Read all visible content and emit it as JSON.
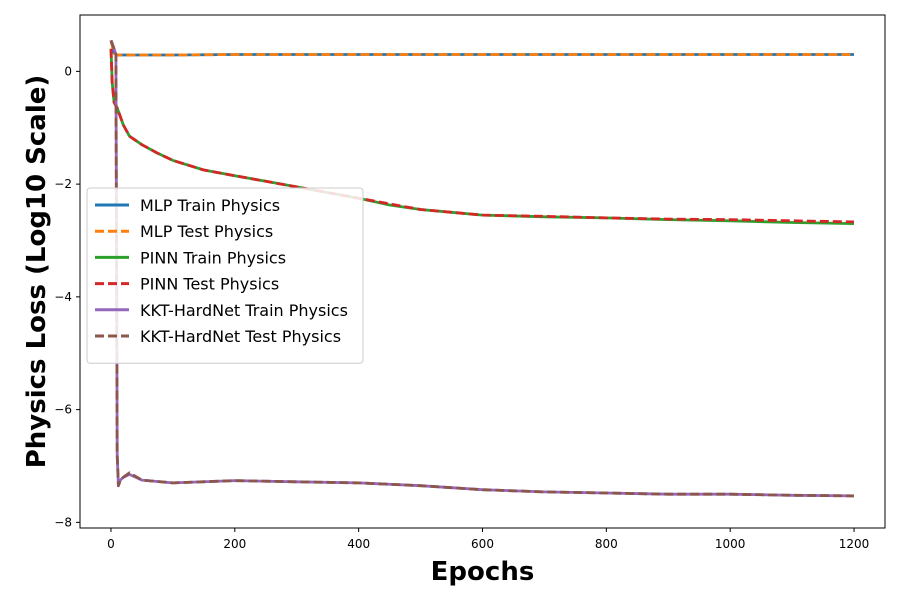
{
  "chart_data": {
    "type": "line",
    "title": "",
    "xlabel": "Epochs",
    "ylabel": "Physics Loss (Log10 Scale)",
    "xlim": [
      -50,
      1250
    ],
    "ylim": [
      -8.1,
      1.0
    ],
    "x_ticks": [
      0,
      200,
      400,
      600,
      800,
      1000,
      1200
    ],
    "y_ticks": [
      0,
      -2,
      -4,
      -6,
      -8
    ],
    "x_tick_labels": [
      "0",
      "200",
      "400",
      "600",
      "800",
      "1000",
      "1200"
    ],
    "y_tick_labels": [
      "0",
      "−2",
      "−4",
      "−6",
      "−8"
    ],
    "grid": false,
    "legend_position": "center-left",
    "series": [
      {
        "name": "MLP Train Physics",
        "color": "#1f77b4",
        "style": "solid",
        "x": [
          0,
          5,
          10,
          20,
          50,
          100,
          200,
          400,
          600,
          800,
          1000,
          1200
        ],
        "y": [
          0.55,
          0.32,
          0.29,
          0.29,
          0.29,
          0.29,
          0.3,
          0.3,
          0.3,
          0.3,
          0.3,
          0.3
        ]
      },
      {
        "name": "MLP Test Physics",
        "color": "#ff7f0e",
        "style": "dashed",
        "x": [
          0,
          5,
          10,
          20,
          50,
          100,
          200,
          400,
          600,
          800,
          1000,
          1200
        ],
        "y": [
          0.55,
          0.32,
          0.29,
          0.29,
          0.29,
          0.29,
          0.3,
          0.3,
          0.3,
          0.3,
          0.3,
          0.3
        ]
      },
      {
        "name": "PINN Train Physics",
        "color": "#2ca02c",
        "style": "solid",
        "x": [
          0,
          2,
          5,
          10,
          15,
          20,
          30,
          50,
          75,
          100,
          150,
          200,
          250,
          300,
          350,
          400,
          450,
          500,
          550,
          600,
          700,
          800,
          900,
          1000,
          1100,
          1200
        ],
        "y": [
          0.4,
          -0.2,
          -0.55,
          -0.65,
          -0.8,
          -0.95,
          -1.15,
          -1.3,
          -1.45,
          -1.58,
          -1.75,
          -1.85,
          -1.95,
          -2.05,
          -2.15,
          -2.25,
          -2.37,
          -2.45,
          -2.5,
          -2.55,
          -2.58,
          -2.6,
          -2.63,
          -2.65,
          -2.68,
          -2.7
        ]
      },
      {
        "name": "PINN Test Physics",
        "color": "#d62728",
        "style": "dashed",
        "x": [
          0,
          2,
          5,
          10,
          15,
          20,
          30,
          50,
          75,
          100,
          150,
          200,
          250,
          300,
          350,
          400,
          450,
          500,
          550,
          600,
          700,
          800,
          900,
          1000,
          1100,
          1200
        ],
        "y": [
          0.4,
          -0.2,
          -0.55,
          -0.65,
          -0.8,
          -0.95,
          -1.15,
          -1.3,
          -1.45,
          -1.58,
          -1.75,
          -1.85,
          -1.95,
          -2.05,
          -2.15,
          -2.25,
          -2.35,
          -2.45,
          -2.5,
          -2.55,
          -2.57,
          -2.6,
          -2.62,
          -2.63,
          -2.65,
          -2.67
        ]
      },
      {
        "name": "KKT-HardNet Train Physics",
        "color": "#9467bd",
        "style": "solid",
        "x": [
          0,
          5,
          8,
          10,
          12,
          15,
          20,
          30,
          50,
          100,
          200,
          300,
          400,
          500,
          600,
          700,
          800,
          900,
          1000,
          1100,
          1200
        ],
        "y": [
          0.55,
          0.4,
          0.3,
          -6.8,
          -7.35,
          -7.25,
          -7.2,
          -7.15,
          -7.25,
          -7.3,
          -7.26,
          -7.28,
          -7.3,
          -7.35,
          -7.42,
          -7.46,
          -7.48,
          -7.5,
          -7.5,
          -7.52,
          -7.53
        ]
      },
      {
        "name": "KKT-HardNet Test Physics",
        "color": "#8c564b",
        "style": "dashed",
        "x": [
          0,
          5,
          8,
          10,
          12,
          15,
          20,
          30,
          50,
          100,
          200,
          300,
          400,
          500,
          600,
          700,
          800,
          900,
          1000,
          1100,
          1200
        ],
        "y": [
          0.55,
          0.4,
          0.3,
          -6.8,
          -7.35,
          -7.25,
          -7.2,
          -7.12,
          -7.25,
          -7.3,
          -7.26,
          -7.28,
          -7.3,
          -7.35,
          -7.42,
          -7.46,
          -7.48,
          -7.5,
          -7.5,
          -7.52,
          -7.53
        ]
      }
    ]
  }
}
